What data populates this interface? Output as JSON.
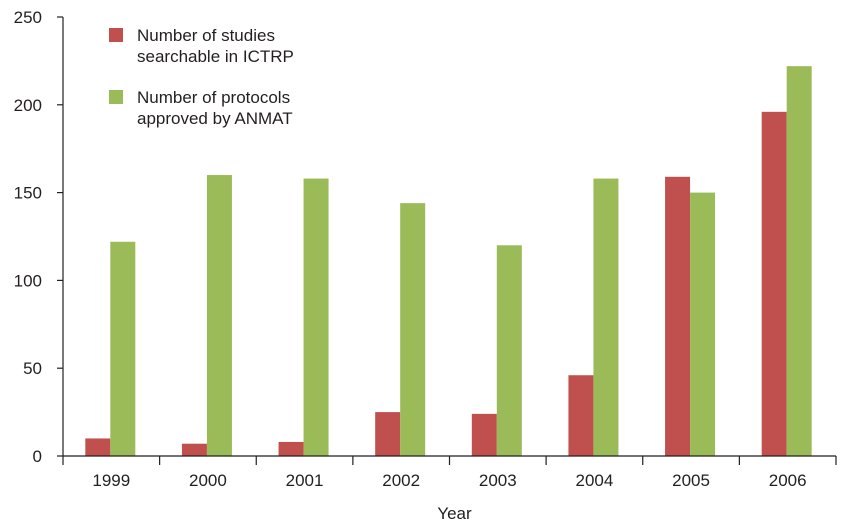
{
  "chart_data": {
    "type": "bar",
    "categories": [
      "1999",
      "2000",
      "2001",
      "2002",
      "2003",
      "2004",
      "2005",
      "2006"
    ],
    "series": [
      {
        "name": "Number of studies searchable in ICTRP",
        "legend_lines": [
          "Number of studies",
          "searchable in ICTRP"
        ],
        "color": "#c0504d",
        "values": [
          10,
          7,
          8,
          25,
          24,
          46,
          159,
          196
        ]
      },
      {
        "name": "Number of protocols approved by ANMAT",
        "legend_lines": [
          "Number of protocols",
          "approved by ANMAT"
        ],
        "color": "#9bbb59",
        "values": [
          122,
          160,
          158,
          144,
          120,
          158,
          150,
          222
        ]
      }
    ],
    "xlabel": "Year",
    "ylabel": "",
    "ylim": [
      0,
      250
    ],
    "yticks": [
      "0",
      "50",
      "100",
      "150",
      "200",
      "250"
    ],
    "grid": false,
    "legend_position": "top-left"
  }
}
